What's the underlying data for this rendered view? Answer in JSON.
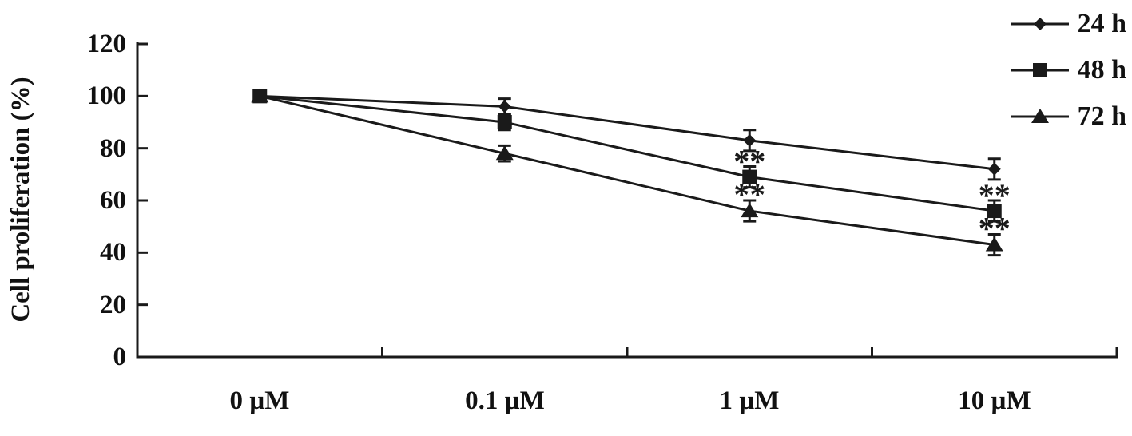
{
  "figure": {
    "background": "#ffffff",
    "line_color": "#1a1a1a",
    "text_color": "#111111"
  },
  "chart_data": {
    "type": "line",
    "title": "",
    "xlabel": "",
    "ylabel": "Cell proliferation (%)",
    "categories": [
      "0 µM",
      "0.1 µM",
      "1 µM",
      "10 µM"
    ],
    "yticks": [
      120,
      100,
      80,
      60,
      40,
      20,
      0
    ],
    "ylim": [
      0,
      120
    ],
    "grid": false,
    "legend_position": "top-right",
    "series": [
      {
        "name": "24 h",
        "marker": "diamond",
        "values": [
          100,
          96,
          83,
          72
        ],
        "errors": [
          0,
          3,
          4,
          4
        ]
      },
      {
        "name": "48 h",
        "marker": "square",
        "values": [
          100,
          90,
          69,
          56
        ],
        "errors": [
          0,
          3,
          4,
          4
        ]
      },
      {
        "name": "72 h",
        "marker": "triangle",
        "values": [
          100,
          78,
          56,
          43
        ],
        "errors": [
          0,
          3,
          4,
          4
        ]
      }
    ],
    "annotations": [
      {
        "text": "**",
        "series": "48 h",
        "category": "1 µM"
      },
      {
        "text": "**",
        "series": "48 h",
        "category": "10 µM"
      },
      {
        "text": "**",
        "series": "72 h",
        "category": "1 µM"
      },
      {
        "text": "**",
        "series": "72 h",
        "category": "10 µM"
      }
    ]
  }
}
